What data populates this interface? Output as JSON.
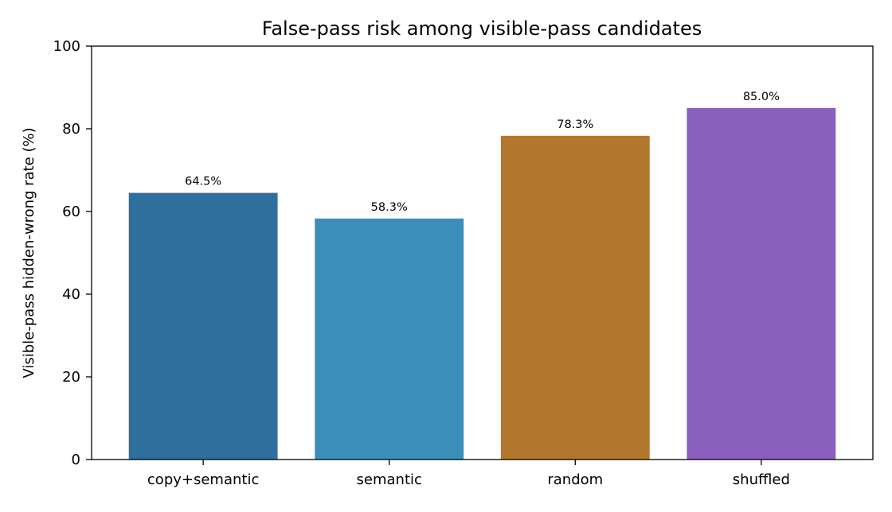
{
  "chart_data": {
    "type": "bar",
    "title": "False-pass risk among visible-pass candidates",
    "xlabel": "",
    "ylabel": "Visible-pass hidden-wrong rate (%)",
    "categories": [
      "copy+semantic",
      "semantic",
      "random",
      "shuffled"
    ],
    "values": [
      64.5,
      58.3,
      78.3,
      85.0
    ],
    "data_labels": [
      "64.5%",
      "58.3%",
      "78.3%",
      "85.0%"
    ],
    "colors": [
      "#2e6f9e",
      "#3b8eb8",
      "#b2772c",
      "#8b60be"
    ],
    "ylim": [
      0,
      100
    ],
    "yticks": [
      0,
      20,
      40,
      60,
      80,
      100
    ],
    "ytick_labels": [
      "0",
      "20",
      "40",
      "60",
      "80",
      "100"
    ],
    "grid": false,
    "legend": "none"
  }
}
